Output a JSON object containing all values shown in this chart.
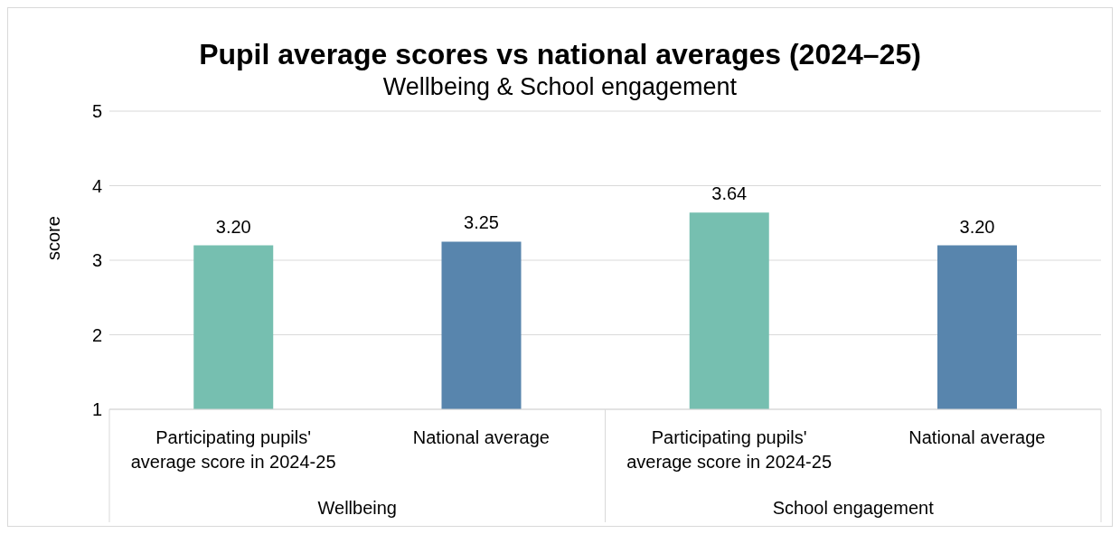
{
  "chart_data": {
    "type": "bar",
    "title": "Pupil average scores vs national averages (2024–25)",
    "subtitle": "Wellbeing & School engagement",
    "ylabel": "score",
    "categories": [
      "Participating pupils' average score in 2024-25",
      "National average",
      "Participating pupils' average score in 2024-25",
      "National average"
    ],
    "values": [
      3.2,
      3.25,
      3.64,
      3.2
    ],
    "value_labels": [
      "3.20",
      "3.25",
      "3.64",
      "3.20"
    ],
    "colors": [
      "#76bfb0",
      "#5885ad",
      "#76bfb0",
      "#5885ad"
    ],
    "annotations": [
      "Wellbeing",
      "School engagement"
    ],
    "ylim": [
      1,
      5
    ],
    "yticks": [
      1,
      2,
      3,
      4,
      5
    ],
    "grid": "y"
  }
}
